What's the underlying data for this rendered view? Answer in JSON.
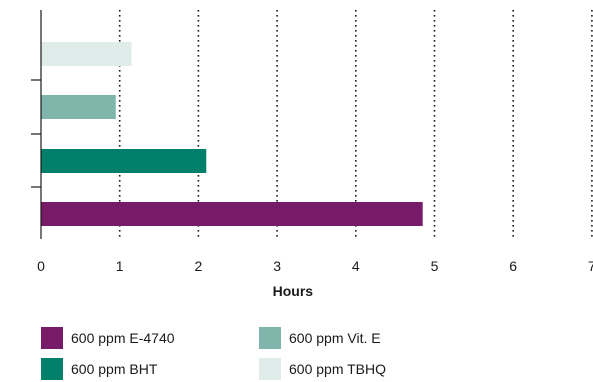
{
  "chart_data": {
    "type": "bar",
    "orientation": "horizontal",
    "title": "",
    "xlabel": "Hours",
    "ylabel": "",
    "xlim": [
      0,
      7
    ],
    "x_ticks": [
      "0",
      "1",
      "2",
      "3",
      "4",
      "5",
      "6",
      "7"
    ],
    "grid": "vertical dotted",
    "legend_position": "bottom",
    "series": [
      {
        "name": "600 ppm E-4740",
        "value": 4.85,
        "color": "#771a68"
      },
      {
        "name": "600 ppm BHT",
        "value": 2.1,
        "color": "#00806a"
      },
      {
        "name": "600 ppm Vit. E",
        "value": 0.95,
        "color": "#7fb5ab"
      },
      {
        "name": "600 ppm TBHQ",
        "value": 1.15,
        "color": "#dfece9"
      }
    ]
  }
}
